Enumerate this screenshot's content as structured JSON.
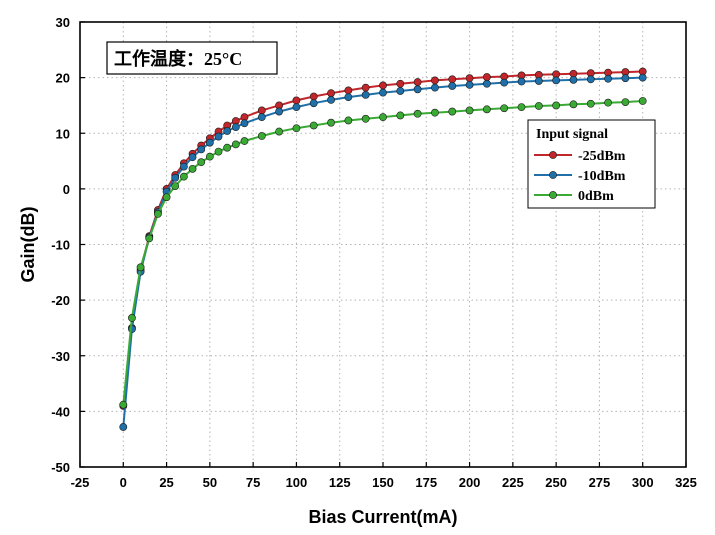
{
  "chart_data": {
    "type": "line",
    "title": "",
    "xlabel": "Bias Current(mA)",
    "ylabel": "Gain(dB)",
    "xlim": [
      -25,
      325
    ],
    "ylim": [
      -50,
      30
    ],
    "xticks": [
      -25,
      0,
      25,
      50,
      75,
      100,
      125,
      150,
      175,
      200,
      225,
      250,
      275,
      300,
      325
    ],
    "yticks": [
      -50,
      -40,
      -30,
      -20,
      -10,
      0,
      10,
      20,
      30
    ],
    "grid": true,
    "annotation": "工作温度：25°C",
    "legend": {
      "title": "Input signal",
      "placement": "right"
    },
    "x": [
      0,
      5,
      10,
      15,
      20,
      25,
      30,
      35,
      40,
      45,
      50,
      55,
      60,
      65,
      70,
      80,
      90,
      100,
      110,
      120,
      130,
      140,
      150,
      160,
      170,
      180,
      190,
      200,
      210,
      220,
      230,
      240,
      250,
      260,
      270,
      280,
      290,
      300
    ],
    "series": [
      {
        "name": "-25dBm",
        "color": "#c0262a",
        "values": [
          -39.0,
          -25.0,
          -14.5,
          -8.5,
          -3.8,
          0.0,
          2.5,
          4.6,
          6.3,
          7.8,
          9.1,
          10.3,
          11.4,
          12.2,
          12.9,
          14.1,
          15.0,
          15.9,
          16.6,
          17.2,
          17.7,
          18.2,
          18.6,
          18.9,
          19.2,
          19.5,
          19.7,
          19.9,
          20.1,
          20.2,
          20.4,
          20.5,
          20.6,
          20.7,
          20.8,
          20.9,
          21.0,
          21.1
        ]
      },
      {
        "name": "-10dBm",
        "color": "#1f6fa8",
        "values": [
          -42.8,
          -25.2,
          -14.9,
          -8.7,
          -4.2,
          -0.5,
          2.0,
          4.0,
          5.7,
          7.1,
          8.3,
          9.4,
          10.4,
          11.1,
          11.8,
          12.9,
          13.9,
          14.7,
          15.4,
          16.0,
          16.5,
          16.9,
          17.3,
          17.6,
          17.9,
          18.2,
          18.5,
          18.7,
          18.9,
          19.1,
          19.3,
          19.4,
          19.5,
          19.6,
          19.7,
          19.8,
          19.9,
          20.0
        ]
      },
      {
        "name": "0dBm",
        "color": "#3aaa35",
        "values": [
          -38.8,
          -23.2,
          -14.1,
          -8.9,
          -4.5,
          -1.5,
          0.5,
          2.2,
          3.6,
          4.8,
          5.8,
          6.7,
          7.4,
          8.0,
          8.6,
          9.5,
          10.3,
          10.9,
          11.4,
          11.9,
          12.3,
          12.6,
          12.9,
          13.2,
          13.5,
          13.7,
          13.9,
          14.1,
          14.3,
          14.5,
          14.7,
          14.9,
          15.0,
          15.2,
          15.3,
          15.5,
          15.6,
          15.8
        ]
      }
    ]
  }
}
